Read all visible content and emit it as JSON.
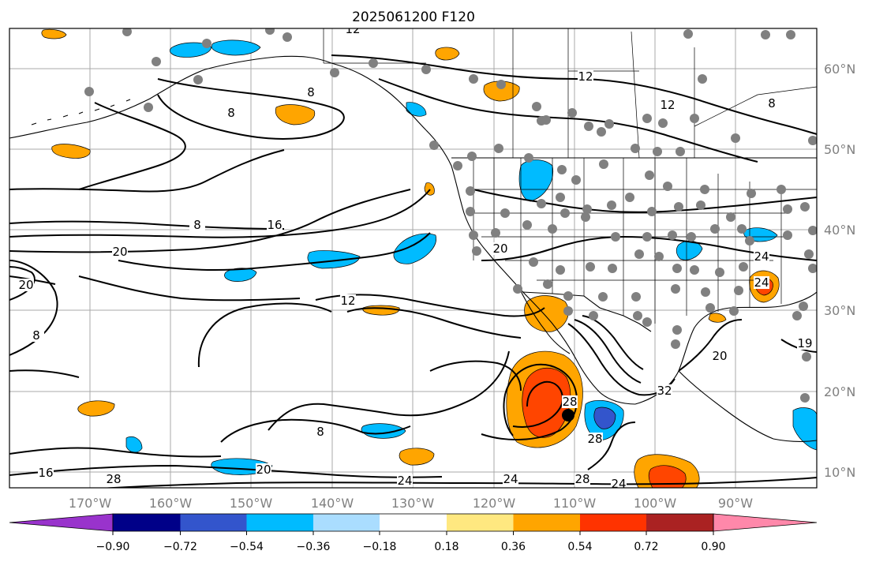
{
  "title": "2025061200 F120",
  "lat_labels": [
    "60°N",
    "50°N",
    "40°N",
    "30°N",
    "20°N",
    "10°N"
  ],
  "lon_labels": [
    "170°W",
    "160°W",
    "150°W",
    "140°W",
    "130°W",
    "120°W",
    "110°W",
    "100°W",
    "90°W"
  ],
  "contour_labels": [
    "12",
    "12",
    "8",
    "8",
    "12",
    "8",
    "8",
    "12",
    "16",
    "20",
    "20",
    "8",
    "8",
    "20",
    "24",
    "24",
    "28",
    "28",
    "32",
    "20",
    "16",
    "28",
    "20",
    "24",
    "24",
    "28",
    "24",
    "19"
  ],
  "colorbar": {
    "tick_labels": [
      "−0.90",
      "−0.72",
      "−0.54",
      "−0.36",
      "−0.18",
      "0.18",
      "0.36",
      "0.54",
      "0.72",
      "0.90"
    ],
    "colors": [
      "#9933cc",
      "#000088",
      "#3355cc",
      "#00bbff",
      "#aaddff",
      "#ffffff",
      "#ffe880",
      "#ffa500",
      "#ff3300",
      "#aa2222",
      "#ff88aa"
    ]
  },
  "shading_colors": {
    "pos_light": "#ffa500",
    "pos_strong": "#ff4500",
    "pos_extreme": "#cc2222",
    "neg_light": "#00bbff",
    "neg_strong": "#3355cc"
  },
  "marker_colors": {
    "stations": "#808080",
    "center": "#000000"
  }
}
